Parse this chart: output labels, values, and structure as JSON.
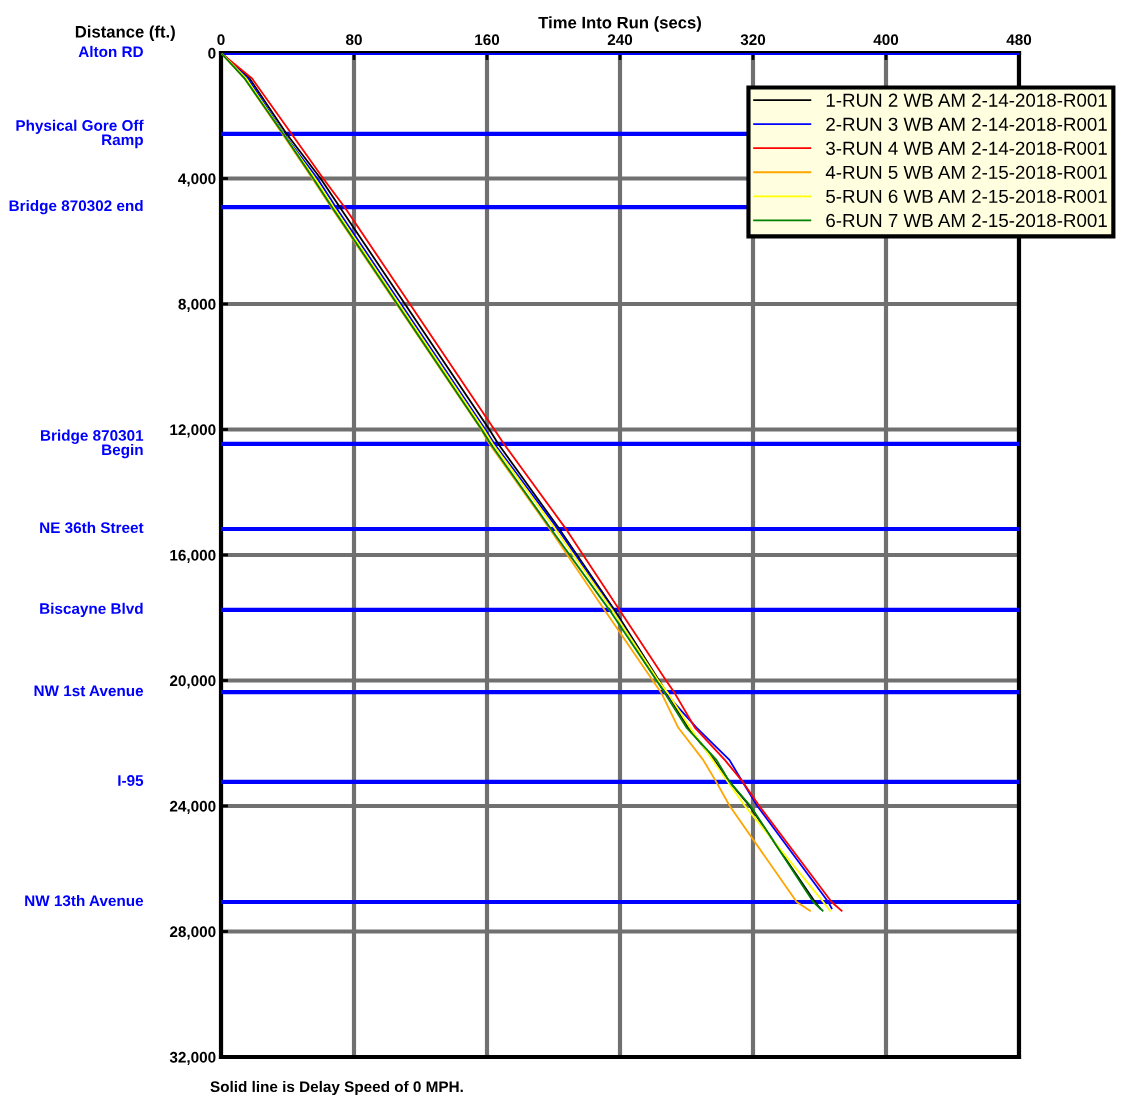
{
  "chart_data": {
    "type": "line",
    "xlabel": "Time Into Run (secs)",
    "ylabel": "Distance (ft.)",
    "xlim": [
      0,
      480
    ],
    "xticks": [
      0,
      80,
      160,
      240,
      320,
      400,
      480
    ],
    "ylim": [
      32000,
      0
    ],
    "yticks": [
      0,
      {
        "value": 4000,
        "label": "4,000"
      },
      {
        "value": 8000,
        "label": "8,000"
      },
      {
        "value": 12000,
        "label": "12,000"
      },
      {
        "value": 16000,
        "label": "16,000"
      },
      {
        "value": 20000,
        "label": "20,000"
      },
      {
        "value": 24000,
        "label": "24,000"
      },
      {
        "value": 28000,
        "label": "28,000"
      },
      {
        "value": 32000,
        "label": "32,000"
      }
    ],
    "grid": true,
    "legend": "top right",
    "marker": "none",
    "line_style": "solid",
    "series": [
      {
        "name": "1-RUN 2 WB AM 2-14-2018-R001",
        "color": "#000000",
        "x": [
          0,
          17,
          39.5,
          59.9,
          71.7,
          161.4,
          166.8,
          203.9,
          237,
          263.5,
          281,
          296.5,
          306,
          318,
          357.3,
          360.3
        ],
        "values": [
          0,
          800,
          2580,
          4000,
          4930,
          12000,
          12460,
          15200,
          17780,
          20000,
          21500,
          22530,
          23240,
          24000,
          27060,
          27260
        ]
      },
      {
        "name": "2-RUN 3 WB AM 2-14-2018-R001",
        "color": "#0000ff",
        "x": [
          0,
          16,
          37.9,
          58,
          69.3,
          159,
          164.5,
          203,
          236,
          267.5,
          286,
          305.8,
          313.8,
          322.6,
          365.3,
          367.3
        ],
        "values": [
          0,
          800,
          2580,
          4000,
          4930,
          12000,
          12460,
          15200,
          17780,
          20410,
          21500,
          22530,
          23240,
          24000,
          27060,
          27260
        ]
      },
      {
        "name": "3-RUN 4 WB AM 2-14-2018-R001",
        "color": "#ff0000",
        "x": [
          0,
          18.5,
          42.5,
          61.5,
          74.6,
          164.4,
          170.2,
          207.9,
          240,
          267.7,
          273,
          285,
          303,
          314,
          323.8,
          367.3,
          373.3
        ],
        "values": [
          0,
          800,
          2580,
          4000,
          4930,
          12000,
          12460,
          15200,
          17780,
          20000,
          20410,
          21500,
          22530,
          23240,
          24000,
          27060,
          27340
        ]
      },
      {
        "name": "4-RUN 5 WB AM 2-15-2018-R001",
        "color": "#ffa500",
        "x": [
          0,
          14,
          37,
          55,
          66.5,
          156.5,
          161.5,
          198.2,
          231,
          259.7,
          265,
          275,
          290,
          298,
          306,
          346.3,
          354.3
        ],
        "values": [
          0,
          800,
          2580,
          4000,
          4930,
          12000,
          12460,
          15200,
          17780,
          20000,
          20410,
          21500,
          22530,
          23240,
          24000,
          27060,
          27340
        ]
      },
      {
        "name": "5-RUN 6 WB AM 2-15-2018-R001",
        "color": "#ffff00",
        "x": [
          0,
          15,
          37.7,
          56.5,
          68,
          158,
          163.5,
          201.5,
          235.6,
          263,
          268.9,
          282,
          295.7,
          305,
          315.2,
          362.3,
          366.3
        ],
        "values": [
          0,
          800,
          2580,
          4000,
          4930,
          12000,
          12460,
          15200,
          17780,
          20000,
          20410,
          21500,
          22530,
          23240,
          24000,
          27060,
          27340
        ]
      },
      {
        "name": "6-RUN 7 WB AM 2-15-2018-R001",
        "color": "#008000",
        "x": [
          0,
          14,
          37.5,
          55.5,
          67,
          156.8,
          162.2,
          198.9,
          234,
          262,
          267,
          280,
          298,
          306,
          318.5,
          356.3,
          361.9
        ],
        "values": [
          0,
          800,
          2580,
          4000,
          4930,
          12000,
          12460,
          15200,
          17780,
          20000,
          20410,
          21500,
          22530,
          23240,
          24000,
          27060,
          27340
        ]
      }
    ],
    "ref_lines": [
      {
        "axis": "y",
        "value": 0,
        "label": "Alton RD",
        "color": "#0000ff"
      },
      {
        "axis": "y",
        "value": 2580,
        "label": "Physical Gore Off\nRamp",
        "color": "#0000ff"
      },
      {
        "axis": "y",
        "value": 4910,
        "label": "Bridge 870302 end",
        "color": "#0000ff"
      },
      {
        "axis": "y",
        "value": 12460,
        "label": "Bridge 870301\nBegin",
        "color": "#0000ff"
      },
      {
        "axis": "y",
        "value": 15170,
        "label": "NE 36th Street",
        "color": "#0000ff"
      },
      {
        "axis": "y",
        "value": 17750,
        "label": "Biscayne Blvd",
        "color": "#0000ff"
      },
      {
        "axis": "y",
        "value": 20370,
        "label": "NW 1st Avenue",
        "color": "#0000ff"
      },
      {
        "axis": "y",
        "value": 23230,
        "label": "I-95",
        "color": "#0000ff"
      },
      {
        "axis": "y",
        "value": 27060,
        "label": "NW 13th Avenue",
        "color": "#0000ff"
      }
    ],
    "annotations": [
      "Solid line is Delay Speed of 0 MPH."
    ]
  }
}
